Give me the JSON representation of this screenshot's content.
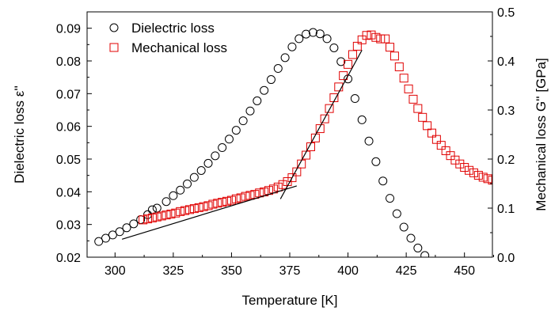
{
  "chart_data": {
    "type": "scatter",
    "xlabel": "Temperature [K]",
    "ylabel_left": "Dielectric  loss  ε''",
    "ylabel_right": "Mechanical loss G'' [GPa]",
    "xlim": [
      288,
      462
    ],
    "ylim_left": [
      0.02,
      0.095
    ],
    "ylim_right": [
      0.0,
      0.5
    ],
    "x_ticks": [
      300,
      325,
      350,
      375,
      400,
      425,
      450
    ],
    "y_left_ticks": [
      0.02,
      0.03,
      0.04,
      0.05,
      0.06,
      0.07,
      0.08,
      0.09
    ],
    "y_right_ticks": [
      0.0,
      0.1,
      0.2,
      0.3,
      0.4,
      0.5
    ],
    "x_tick_labels": [
      "300",
      "325",
      "350",
      "375",
      "400",
      "425",
      "450"
    ],
    "y_left_tick_labels": [
      "0.02",
      "0.03",
      "0.04",
      "0.05",
      "0.06",
      "0.07",
      "0.08",
      "0.09"
    ],
    "y_right_tick_labels": [
      "0.0",
      "0.1",
      "0.2",
      "0.3",
      "0.4",
      "0.5"
    ],
    "grid": false,
    "legend_position": "top-left",
    "series": [
      {
        "name": "Dielectric loss",
        "marker": "circle",
        "color": "#000000",
        "axis": "left",
        "points": [
          [
            293,
            0.0248
          ],
          [
            296,
            0.0258
          ],
          [
            299,
            0.0268
          ],
          [
            302,
            0.0278
          ],
          [
            305,
            0.029
          ],
          [
            308,
            0.0302
          ],
          [
            311,
            0.0315
          ],
          [
            314,
            0.033
          ],
          [
            316,
            0.0345
          ],
          [
            318,
            0.035
          ],
          [
            322,
            0.037
          ],
          [
            325,
            0.0388
          ],
          [
            328,
            0.0405
          ],
          [
            331,
            0.0424
          ],
          [
            334,
            0.0444
          ],
          [
            337,
            0.0465
          ],
          [
            340,
            0.0487
          ],
          [
            343,
            0.051
          ],
          [
            346,
            0.0535
          ],
          [
            349,
            0.0561
          ],
          [
            352,
            0.0588
          ],
          [
            355,
            0.0617
          ],
          [
            358,
            0.0647
          ],
          [
            361,
            0.0678
          ],
          [
            364,
            0.071
          ],
          [
            367,
            0.0743
          ],
          [
            370,
            0.0777
          ],
          [
            373,
            0.081
          ],
          [
            376,
            0.0843
          ],
          [
            379,
            0.0868
          ],
          [
            382,
            0.0882
          ],
          [
            385,
            0.0887
          ],
          [
            388,
            0.0883
          ],
          [
            391,
            0.0868
          ],
          [
            394,
            0.084
          ],
          [
            397,
            0.0798
          ],
          [
            400,
            0.0745
          ],
          [
            403,
            0.0685
          ],
          [
            406,
            0.062
          ],
          [
            409,
            0.0555
          ],
          [
            412,
            0.0492
          ],
          [
            415,
            0.0433
          ],
          [
            418,
            0.038
          ],
          [
            421,
            0.0333
          ],
          [
            424,
            0.0292
          ],
          [
            427,
            0.0258
          ],
          [
            430,
            0.0228
          ],
          [
            433,
            0.0205
          ]
        ]
      },
      {
        "name": "Mechanical loss",
        "marker": "square",
        "color": "#e00000",
        "axis": "right",
        "points": [
          [
            312,
            0.076
          ],
          [
            314,
            0.078
          ],
          [
            316,
            0.08
          ],
          [
            318,
            0.082
          ],
          [
            320,
            0.084
          ],
          [
            322,
            0.086
          ],
          [
            324,
            0.088
          ],
          [
            326,
            0.09
          ],
          [
            328,
            0.093
          ],
          [
            330,
            0.095
          ],
          [
            332,
            0.097
          ],
          [
            334,
            0.099
          ],
          [
            336,
            0.101
          ],
          [
            338,
            0.103
          ],
          [
            340,
            0.105
          ],
          [
            342,
            0.108
          ],
          [
            344,
            0.11
          ],
          [
            346,
            0.112
          ],
          [
            348,
            0.114
          ],
          [
            350,
            0.116
          ],
          [
            352,
            0.119
          ],
          [
            354,
            0.121
          ],
          [
            356,
            0.124
          ],
          [
            358,
            0.126
          ],
          [
            360,
            0.128
          ],
          [
            362,
            0.131
          ],
          [
            364,
            0.133
          ],
          [
            366,
            0.136
          ],
          [
            368,
            0.139
          ],
          [
            370,
            0.143
          ],
          [
            372,
            0.148
          ],
          [
            374,
            0.154
          ],
          [
            376,
            0.162
          ],
          [
            378,
            0.174
          ],
          [
            380,
            0.19
          ],
          [
            382,
            0.208
          ],
          [
            384,
            0.225
          ],
          [
            386,
            0.243
          ],
          [
            388,
            0.262
          ],
          [
            390,
            0.282
          ],
          [
            392,
            0.303
          ],
          [
            394,
            0.325
          ],
          [
            396,
            0.347
          ],
          [
            398,
            0.37
          ],
          [
            400,
            0.393
          ],
          [
            402,
            0.413
          ],
          [
            404,
            0.43
          ],
          [
            406,
            0.443
          ],
          [
            408,
            0.452
          ],
          [
            410,
            0.453
          ],
          [
            412,
            0.448
          ],
          [
            414,
            0.445
          ],
          [
            416,
            0.445
          ],
          [
            418,
            0.428
          ],
          [
            420,
            0.41
          ],
          [
            422,
            0.388
          ],
          [
            424,
            0.365
          ],
          [
            426,
            0.343
          ],
          [
            428,
            0.322
          ],
          [
            430,
            0.303
          ],
          [
            432,
            0.285
          ],
          [
            434,
            0.268
          ],
          [
            436,
            0.253
          ],
          [
            438,
            0.24
          ],
          [
            440,
            0.228
          ],
          [
            442,
            0.217
          ],
          [
            444,
            0.207
          ],
          [
            446,
            0.198
          ],
          [
            448,
            0.19
          ],
          [
            450,
            0.183
          ],
          [
            452,
            0.177
          ],
          [
            454,
            0.172
          ],
          [
            456,
            0.167
          ],
          [
            458,
            0.163
          ],
          [
            460,
            0.16
          ],
          [
            462,
            0.157
          ]
        ]
      }
    ],
    "fit_lines": [
      {
        "axis": "left",
        "x": [
          303,
          378
        ],
        "y": [
          0.0255,
          0.0418
        ]
      },
      {
        "axis": "left",
        "x": [
          371,
          406
        ],
        "y": [
          0.0378,
          0.0833
        ]
      }
    ]
  }
}
